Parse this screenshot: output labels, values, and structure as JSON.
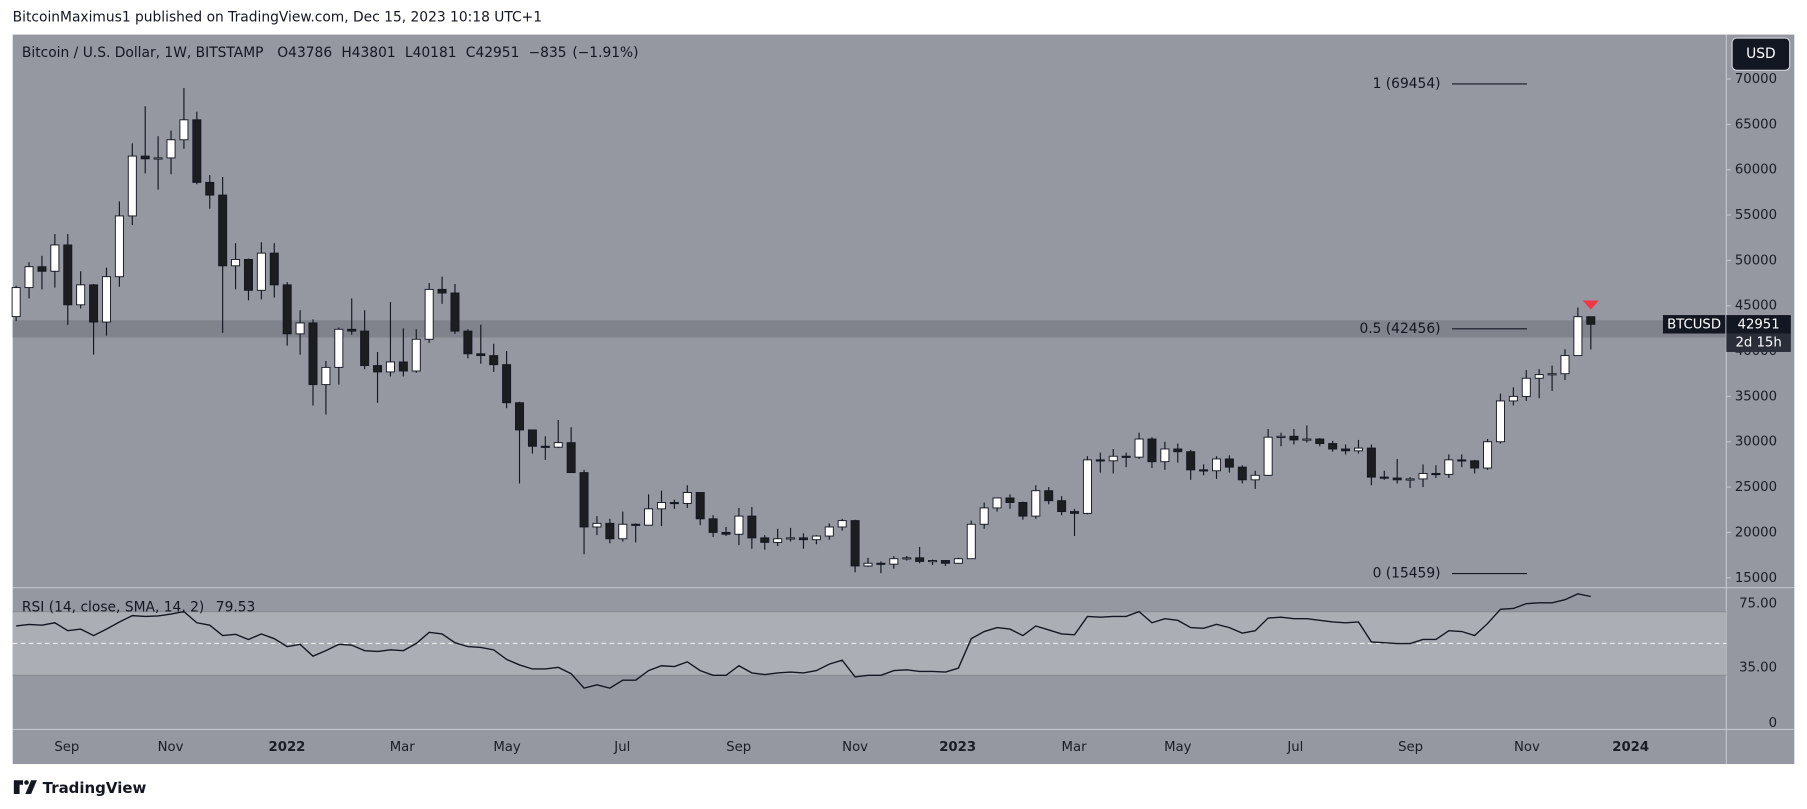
{
  "header": {
    "published": "BitcoinMaximus1 published on TradingView.com, Dec 15, 2023 10:18 UTC+1"
  },
  "footer": {
    "brand": "TradingView"
  },
  "chart_data": {
    "type": "candlestick",
    "title": "Bitcoin / U.S. Dollar, 1W, BITSTAMP",
    "ohlc_prefixes": [
      "O",
      "H",
      "L",
      "C"
    ],
    "change": {
      "value": -835,
      "label": "−835"
    },
    "change_pct": {
      "value": -1.91,
      "label": "(−1.91%)"
    },
    "currency": "USD",
    "symbol": "BTCUSD",
    "countdown": "2d 15h",
    "up_color": "#ffffff",
    "down_color": "#1c1d21",
    "ylim": [
      13900,
      74900
    ],
    "yticks": [
      15000,
      20000,
      25000,
      30000,
      35000,
      40000,
      45000,
      50000,
      55000,
      60000,
      65000,
      70000
    ],
    "xtick_labels": [
      "Sep",
      "Nov",
      "2022",
      "Mar",
      "May",
      "Jul",
      "Sep",
      "Nov",
      "2023",
      "Mar",
      "May",
      "Jul",
      "Sep",
      "Nov",
      "2024"
    ],
    "zone": [
      41500,
      43400
    ],
    "fib_levels": [
      {
        "value": 69454,
        "label": "1 (69454)"
      },
      {
        "value": 42456,
        "label": "0.5 (42456)"
      },
      {
        "value": 15459,
        "label": "0 (15459)"
      }
    ],
    "marker_color": "#f23645",
    "candles": [
      [
        43800,
        47200,
        43300,
        47000
      ],
      [
        47000,
        49800,
        45800,
        49300
      ],
      [
        49300,
        50500,
        46800,
        48800
      ],
      [
        48800,
        52900,
        47000,
        51700
      ],
      [
        51700,
        52900,
        42900,
        45100
      ],
      [
        45100,
        48800,
        44700,
        47300
      ],
      [
        47300,
        47400,
        39600,
        43200
      ],
      [
        43200,
        49200,
        41700,
        48200
      ],
      [
        48200,
        56500,
        47100,
        54900
      ],
      [
        54900,
        62900,
        53900,
        61500
      ],
      [
        61500,
        67000,
        59600,
        61200
      ],
      [
        61200,
        63700,
        57800,
        61300
      ],
      [
        61300,
        64300,
        59500,
        63300
      ],
      [
        63300,
        69000,
        62300,
        65500
      ],
      [
        65500,
        66400,
        58400,
        58600
      ],
      [
        58600,
        59400,
        55700,
        57200
      ],
      [
        57200,
        59200,
        42000,
        49400
      ],
      [
        49400,
        51900,
        46800,
        50100
      ],
      [
        50100,
        50200,
        45600,
        46700
      ],
      [
        46700,
        52000,
        45700,
        50800
      ],
      [
        50800,
        51900,
        45900,
        47300
      ],
      [
        47300,
        47600,
        40600,
        41900
      ],
      [
        41900,
        44500,
        39600,
        43100
      ],
      [
        43100,
        43500,
        34000,
        36300
      ],
      [
        36300,
        38900,
        33000,
        38200
      ],
      [
        38200,
        42600,
        36300,
        42400
      ],
      [
        42400,
        45800,
        41800,
        42200
      ],
      [
        42200,
        44500,
        38000,
        38400
      ],
      [
        38400,
        39900,
        34300,
        37700
      ],
      [
        37700,
        45400,
        37200,
        38800
      ],
      [
        38800,
        42500,
        37200,
        37800
      ],
      [
        37800,
        42400,
        37600,
        41300
      ],
      [
        41300,
        47500,
        40900,
        46800
      ],
      [
        46800,
        48200,
        45200,
        46400
      ],
      [
        46400,
        47400,
        41900,
        42200
      ],
      [
        42200,
        42400,
        39200,
        39700
      ],
      [
        39700,
        42900,
        38600,
        39500
      ],
      [
        39500,
        40800,
        37700,
        38500
      ],
      [
        38500,
        40000,
        33700,
        34300
      ],
      [
        34300,
        34400,
        25400,
        31300
      ],
      [
        31300,
        31300,
        28700,
        29500
      ],
      [
        29500,
        30600,
        28000,
        29400
      ],
      [
        29400,
        32400,
        29300,
        29900
      ],
      [
        29900,
        31600,
        26600,
        26600
      ],
      [
        26600,
        26900,
        17600,
        20600
      ],
      [
        20600,
        21800,
        19700,
        21000
      ],
      [
        21000,
        21500,
        18800,
        19300
      ],
      [
        19300,
        22300,
        19000,
        20900
      ],
      [
        20900,
        21000,
        18900,
        20800
      ],
      [
        20800,
        24200,
        20800,
        22600
      ],
      [
        22600,
        24600,
        20700,
        23300
      ],
      [
        23300,
        23600,
        22600,
        23200
      ],
      [
        23200,
        25200,
        22700,
        24400
      ],
      [
        24400,
        24400,
        20800,
        21500
      ],
      [
        21500,
        21900,
        19500,
        20000
      ],
      [
        20000,
        20600,
        19600,
        19800
      ],
      [
        19800,
        22700,
        18600,
        21800
      ],
      [
        21800,
        22800,
        18200,
        19400
      ],
      [
        19400,
        19700,
        18100,
        18900
      ],
      [
        18900,
        20400,
        18500,
        19300
      ],
      [
        19300,
        20500,
        19000,
        19400
      ],
      [
        19400,
        19900,
        18200,
        19200
      ],
      [
        19200,
        19700,
        18700,
        19600
      ],
      [
        19600,
        21000,
        19200,
        20600
      ],
      [
        20600,
        21500,
        20200,
        21300
      ],
      [
        21300,
        21400,
        15600,
        16300
      ],
      [
        16300,
        17200,
        16200,
        16600
      ],
      [
        16600,
        16800,
        15500,
        16500
      ],
      [
        16500,
        17400,
        16000,
        17100
      ],
      [
        17100,
        17400,
        16900,
        17200
      ],
      [
        17200,
        18400,
        16600,
        16800
      ],
      [
        16800,
        17000,
        16400,
        16900
      ],
      [
        16900,
        16900,
        16300,
        16600
      ],
      [
        16600,
        17200,
        16600,
        17100
      ],
      [
        17100,
        21300,
        17100,
        20900
      ],
      [
        20900,
        23300,
        20400,
        22700
      ],
      [
        22700,
        23800,
        22300,
        23800
      ],
      [
        23800,
        24200,
        22600,
        23300
      ],
      [
        23300,
        23400,
        21400,
        21800
      ],
      [
        21800,
        25200,
        21500,
        24600
      ],
      [
        24600,
        25000,
        23100,
        23500
      ],
      [
        23500,
        24000,
        21900,
        22300
      ],
      [
        22300,
        22600,
        19600,
        22100
      ],
      [
        22100,
        28400,
        22000,
        28000
      ],
      [
        28000,
        28800,
        26600,
        27900
      ],
      [
        27900,
        29200,
        26500,
        28400
      ],
      [
        28400,
        28800,
        27200,
        28300
      ],
      [
        28300,
        31000,
        28100,
        30300
      ],
      [
        30300,
        30500,
        27100,
        27800
      ],
      [
        27800,
        30000,
        26900,
        29200
      ],
      [
        29200,
        29800,
        27700,
        28900
      ],
      [
        28900,
        29100,
        25800,
        26900
      ],
      [
        26900,
        27500,
        26300,
        26800
      ],
      [
        26800,
        28400,
        25900,
        28100
      ],
      [
        28100,
        28500,
        26600,
        27200
      ],
      [
        27200,
        27400,
        25400,
        25800
      ],
      [
        25800,
        26800,
        24800,
        26300
      ],
      [
        26300,
        31400,
        26300,
        30500
      ],
      [
        30500,
        31000,
        29500,
        30600
      ],
      [
        30600,
        31400,
        29700,
        30200
      ],
      [
        30200,
        31800,
        29900,
        30300
      ],
      [
        30300,
        30400,
        29500,
        29800
      ],
      [
        29800,
        30100,
        28900,
        29200
      ],
      [
        29200,
        29700,
        28600,
        29000
      ],
      [
        29000,
        30200,
        28700,
        29300
      ],
      [
        29300,
        29700,
        25200,
        26100
      ],
      [
        26100,
        26800,
        25800,
        26000
      ],
      [
        26000,
        28100,
        25400,
        25800
      ],
      [
        25800,
        26100,
        24900,
        25900
      ],
      [
        25900,
        27500,
        25000,
        26500
      ],
      [
        26500,
        27400,
        26000,
        26400
      ],
      [
        26400,
        28600,
        26000,
        28000
      ],
      [
        28000,
        28600,
        27200,
        27900
      ],
      [
        27900,
        28000,
        26500,
        27100
      ],
      [
        27100,
        30300,
        26900,
        30000
      ],
      [
        30000,
        35300,
        29800,
        34500
      ],
      [
        34500,
        36000,
        34000,
        35000
      ],
      [
        35000,
        37900,
        34500,
        37000
      ],
      [
        37000,
        38000,
        34800,
        37400
      ],
      [
        37400,
        38400,
        35600,
        37500
      ],
      [
        37500,
        40200,
        36800,
        39500
      ],
      [
        39500,
        44800,
        39500,
        43786
      ],
      [
        43786,
        43801,
        40181,
        42951
      ]
    ],
    "rsi": {
      "label": "RSI (14, close, SMA, 14, 2)",
      "color": "#131722",
      "ylim": [
        -4,
        85
      ],
      "yticks": [
        0,
        {
          "value": 35,
          "label": "35.00"
        },
        {
          "value": 75,
          "label": "75.00"
        }
      ],
      "band": [
        30,
        70
      ],
      "midline": 50,
      "values": [
        61,
        62,
        61.5,
        63,
        58,
        59,
        55,
        59,
        63.5,
        67.5,
        67,
        67.3,
        68.5,
        70,
        63,
        61.5,
        55,
        55.8,
        52.5,
        56,
        53,
        48,
        49.5,
        42,
        45.5,
        49.5,
        49,
        45.5,
        45,
        46,
        45.5,
        50,
        57,
        56,
        50.5,
        48,
        47.5,
        46,
        40,
        36.5,
        34,
        34,
        35,
        31,
        22,
        24,
        22,
        27,
        27,
        33,
        36,
        35.5,
        38.5,
        33,
        30,
        30,
        36,
        31.5,
        30.5,
        31.5,
        32,
        31.5,
        33,
        37,
        39.5,
        29,
        30,
        30,
        33,
        33.5,
        32.5,
        32.5,
        32,
        34.5,
        53,
        57.5,
        60,
        59,
        55,
        61,
        58.5,
        56,
        55.5,
        67,
        66.5,
        67,
        67,
        70,
        63,
        65.5,
        64.5,
        60,
        59.5,
        62,
        60,
        56.5,
        58,
        66,
        66.5,
        65.5,
        65.5,
        64.5,
        63.5,
        63,
        63.5,
        51,
        50.5,
        50,
        50,
        52.5,
        52.5,
        58,
        57.5,
        55,
        62.5,
        71.5,
        72,
        75,
        75.5,
        75.5,
        77.5,
        81.2,
        79.53
      ]
    }
  }
}
